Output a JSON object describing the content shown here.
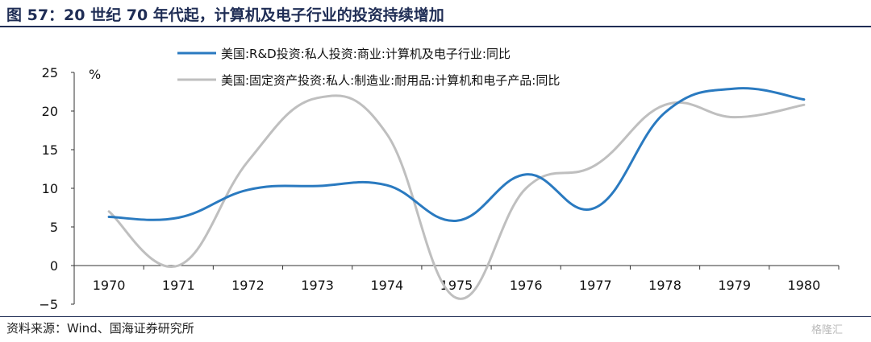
{
  "title": "图 57：20 世纪 70 年代起，计算机及电子行业的投资持续增加",
  "source": "资料来源：Wind、国海证券研究所",
  "watermark": "格隆汇",
  "colors": {
    "series1": "#2a7ac0",
    "series2": "#bfbfbf",
    "title": "#1f2d55"
  },
  "chart_data": {
    "type": "line",
    "title": "",
    "xlabel": "",
    "ylabel": "%",
    "ylim": [
      -5,
      25
    ],
    "yticks": [
      "25",
      "20",
      "15",
      "10",
      "5",
      "0",
      "−5"
    ],
    "categories": [
      "1970",
      "1971",
      "1972",
      "1973",
      "1974",
      "1975",
      "1976",
      "1977",
      "1978",
      "1979",
      "1980"
    ],
    "smooth": true,
    "legend_position": "top-center",
    "series": [
      {
        "name": "美国:R&D投资:私人投资:商业:计算机及电子行业:同比",
        "values": [
          6.3,
          6.2,
          9.8,
          10.3,
          10.4,
          5.8,
          11.8,
          7.5,
          19.8,
          22.9,
          21.5
        ]
      },
      {
        "name": "美国:固定资产投资:私人:制造业:耐用品:计算机和电子产品:同比",
        "values": [
          7.0,
          0.0,
          13.5,
          21.7,
          17.0,
          -4.2,
          10.0,
          13.0,
          20.8,
          19.2,
          20.8
        ]
      }
    ]
  }
}
